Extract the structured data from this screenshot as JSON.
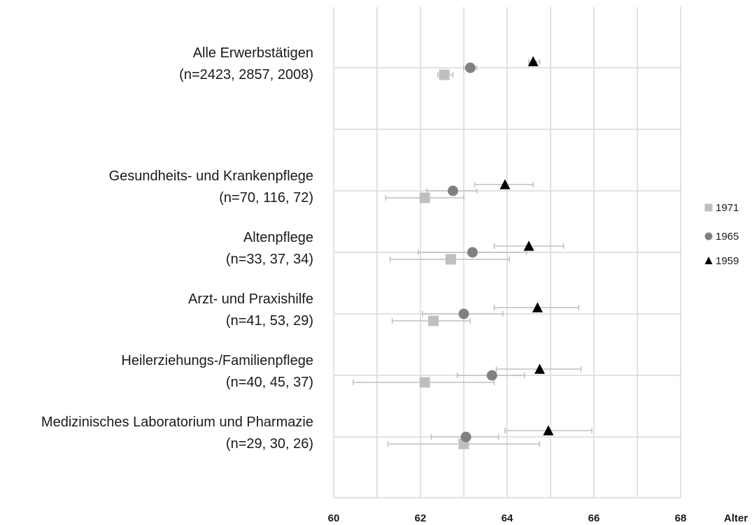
{
  "chart_data": {
    "type": "scatter",
    "subtype": "dot-plot-with-error-bars",
    "title": "",
    "xlabel": "Alter",
    "ylabel": "",
    "xlim": [
      60,
      68
    ],
    "xticks": [
      "60",
      "62",
      "64",
      "66",
      "68"
    ],
    "grid": true,
    "legend_position": "right",
    "categories": [
      {
        "name": "Alle Erwerbstätigen",
        "n": "(n=2423, 2857, 2008)"
      },
      {
        "name": "Gesundheits- und Krankenpflege",
        "n": "(n=70, 116, 72)"
      },
      {
        "name": "Altenpflege",
        "n": "(n=33, 37, 34)"
      },
      {
        "name": "Arzt- und Praxishilfe",
        "n": "(n=41, 53, 29)"
      },
      {
        "name": "Heilerziehungs-/Familienpflege",
        "n": "(n=40, 45, 37)"
      },
      {
        "name": "Medizinisches Laboratorium und Pharmazie",
        "n": "(n=29, 30, 26)"
      }
    ],
    "series": [
      {
        "name": "1971",
        "marker": "square",
        "color": "#bfbfbf",
        "values": [
          62.55,
          62.1,
          62.7,
          62.3,
          62.1,
          63.0
        ],
        "ci_low": [
          62.4,
          61.2,
          61.3,
          61.35,
          60.45,
          61.25
        ],
        "ci_high": [
          62.75,
          63.0,
          64.05,
          63.15,
          63.7,
          64.75
        ]
      },
      {
        "name": "1965",
        "marker": "circle",
        "color": "#808080",
        "values": [
          63.15,
          62.75,
          63.2,
          63.0,
          63.65,
          63.05
        ],
        "ci_low": [
          63.0,
          62.15,
          61.95,
          62.05,
          62.85,
          62.25
        ],
        "ci_high": [
          63.3,
          63.3,
          64.45,
          63.9,
          64.4,
          63.8
        ]
      },
      {
        "name": "1959",
        "marker": "triangle",
        "color": "#000000",
        "values": [
          64.6,
          63.95,
          64.5,
          64.7,
          64.75,
          64.95
        ],
        "ci_low": [
          64.5,
          63.25,
          63.7,
          63.7,
          63.75,
          63.95
        ],
        "ci_high": [
          64.75,
          64.6,
          65.3,
          65.65,
          65.7,
          65.95
        ]
      }
    ]
  }
}
